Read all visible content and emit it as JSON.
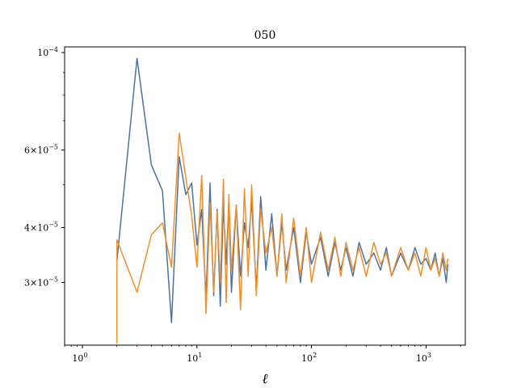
{
  "chart_data": {
    "type": "line",
    "title": "050",
    "xlabel": "ℓ",
    "ylabel": "",
    "xscale": "log",
    "yscale": "log",
    "xlim": [
      0.7,
      2200
    ],
    "ylim": [
      2.16e-05,
      0.000103
    ],
    "x_ticks": [
      {
        "value": 1,
        "label": "10",
        "exp": "0"
      },
      {
        "value": 10,
        "label": "10",
        "exp": "1"
      },
      {
        "value": 100,
        "label": "10",
        "exp": "2"
      },
      {
        "value": 1000,
        "label": "10",
        "exp": "3"
      }
    ],
    "y_ticks": [
      {
        "value": 0.0001,
        "mantissa": "",
        "label": "10",
        "exp": "−4"
      },
      {
        "value": 6e-05,
        "mantissa": "6",
        "label": "10",
        "exp": "−5"
      },
      {
        "value": 4e-05,
        "mantissa": "4",
        "label": "10",
        "exp": "−5"
      },
      {
        "value": 3e-05,
        "mantissa": "3",
        "label": "10",
        "exp": "−5"
      }
    ],
    "grid": false,
    "series": [
      {
        "color": "#4c72a0",
        "x": [
          2,
          3,
          4,
          5,
          6,
          7,
          8,
          9,
          10,
          11,
          12,
          13,
          14,
          15,
          16,
          17,
          18,
          19,
          20,
          22,
          24,
          26,
          28,
          30,
          33,
          36,
          40,
          45,
          50,
          55,
          60,
          70,
          80,
          90,
          100,
          120,
          140,
          160,
          180,
          200,
          230,
          260,
          300,
          350,
          400,
          450,
          500,
          600,
          700,
          800,
          900,
          1000,
          1100,
          1200,
          1300,
          1400,
          1500,
          1550
        ],
        "y": [
          3.35e-05,
          9.7e-05,
          5.55e-05,
          4.85e-05,
          2.43e-05,
          5.8e-05,
          4.75e-05,
          5.05e-05,
          3.65e-05,
          4.4e-05,
          2.75e-05,
          5.05e-05,
          2.8e-05,
          4.4e-05,
          2.65e-05,
          4.5e-05,
          3.3e-05,
          4.6e-05,
          2.85e-05,
          4.5e-05,
          3.1e-05,
          4.1e-05,
          3.6e-05,
          4.6e-05,
          2.9e-05,
          4.7e-05,
          3.2e-05,
          4.3e-05,
          3.1e-05,
          4.1e-05,
          3.2e-05,
          4e-05,
          3e-05,
          3.9e-05,
          3.3e-05,
          3.8e-05,
          3.1e-05,
          3.7e-05,
          3.2e-05,
          3.6e-05,
          3.1e-05,
          3.7e-05,
          3.3e-05,
          3.5e-05,
          3.2e-05,
          3.6e-05,
          3.1e-05,
          3.5e-05,
          3.2e-05,
          3.6e-05,
          3.3e-05,
          3.4e-05,
          3.2e-05,
          3.5e-05,
          3.1e-05,
          3.4e-05,
          3e-05,
          3.3e-05
        ]
      },
      {
        "color": "#f0902c",
        "x": [
          2,
          2,
          3,
          4,
          5,
          6,
          7,
          8,
          9,
          10,
          11,
          12,
          13,
          14,
          15,
          16,
          17,
          18,
          19,
          20,
          22,
          24,
          26,
          28,
          30,
          33,
          36,
          40,
          45,
          50,
          55,
          60,
          70,
          80,
          90,
          100,
          120,
          140,
          160,
          180,
          200,
          230,
          260,
          300,
          350,
          400,
          450,
          500,
          600,
          700,
          800,
          900,
          1000,
          1100,
          1200,
          1300,
          1400,
          1500,
          1550
        ],
        "y": [
          2.18e-05,
          3.75e-05,
          2.85e-05,
          3.85e-05,
          4.1e-05,
          3.25e-05,
          6.55e-05,
          5.2e-05,
          4.25e-05,
          3.25e-05,
          5.25e-05,
          2.55e-05,
          4.55e-05,
          2.85e-05,
          4.35e-05,
          3e-05,
          5.15e-05,
          2.7e-05,
          4.75e-05,
          3.2e-05,
          4.5e-05,
          2.6e-05,
          4.9e-05,
          3.1e-05,
          5e-05,
          2.8e-05,
          4.4e-05,
          3.5e-05,
          4e-05,
          3.1e-05,
          4.3e-05,
          3e-05,
          4.2e-05,
          3.1e-05,
          4e-05,
          3e-05,
          3.9e-05,
          3.2e-05,
          3.8e-05,
          3.1e-05,
          3.7e-05,
          3.2e-05,
          3.6e-05,
          3.1e-05,
          3.7e-05,
          3.3e-05,
          3.5e-05,
          3.1e-05,
          3.6e-05,
          3.2e-05,
          3.5e-05,
          3.1e-05,
          3.6e-05,
          3.2e-05,
          3.4e-05,
          3.1e-05,
          3.5e-05,
          3.2e-05,
          3.4e-05
        ]
      }
    ]
  }
}
